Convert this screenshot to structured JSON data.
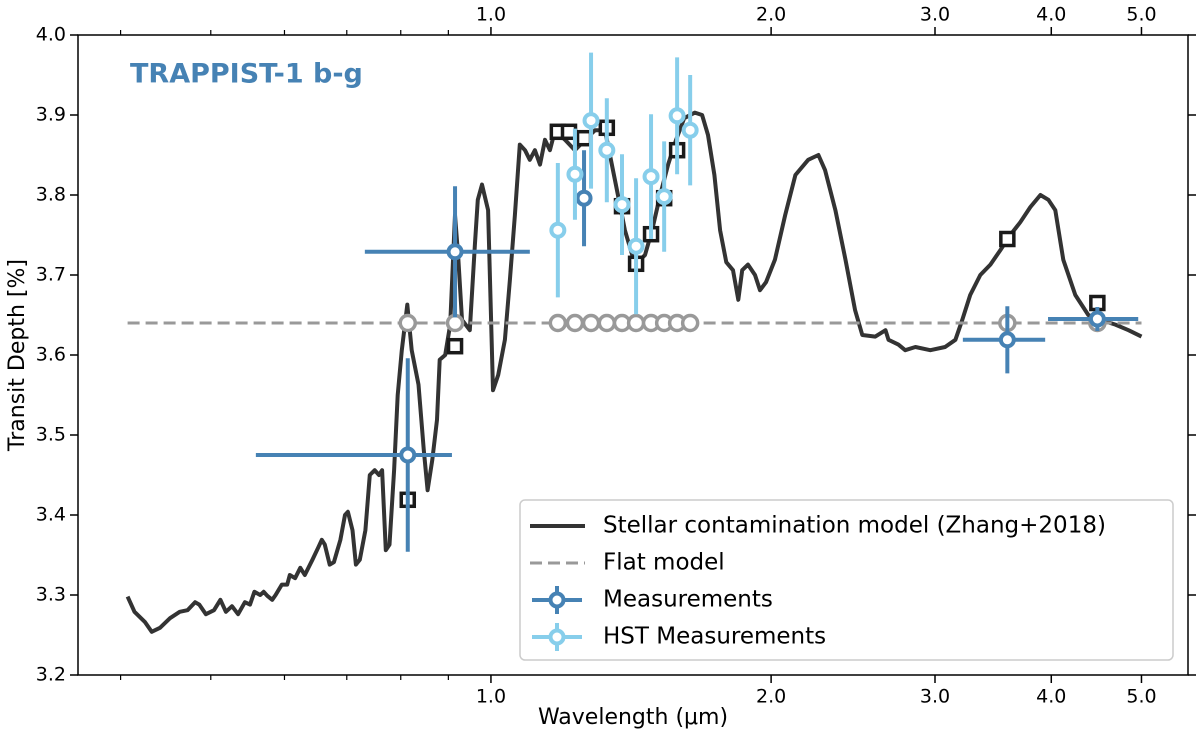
{
  "chart_data": {
    "type": "line",
    "annotation": "TRAPPIST-1 b-g",
    "annotation_color": "#4682b4",
    "xlabel": "Wavelength (μm)",
    "ylabel": "Transit Depth [%]",
    "xscale": "log",
    "xlim": [
      0.36,
      5.61
    ],
    "ylim": [
      3.2,
      4.0
    ],
    "xticks": [
      {
        "value": 1,
        "label": "1.0"
      },
      {
        "value": 2,
        "label": "2.0"
      },
      {
        "value": 3,
        "label": "3.0"
      },
      {
        "value": 4,
        "label": "4.0"
      },
      {
        "value": 5,
        "label": "5.0"
      }
    ],
    "xminor_ticks": [
      0.4,
      0.5,
      0.6,
      0.7,
      0.8,
      0.9
    ],
    "yticks": [
      3.2,
      3.3,
      3.4,
      3.5,
      3.6,
      3.7,
      3.8,
      3.9,
      {
        "value": 4,
        "label": "4.0"
      }
    ],
    "legend": "lower right",
    "series": [
      {
        "name": "Stellar contamination model (Zhang+2018)",
        "color": "#333333",
        "style": "solid",
        "x": [
          0.407,
          0.414,
          0.425,
          0.432,
          0.441,
          0.452,
          0.463,
          0.472,
          0.481,
          0.486,
          0.494,
          0.504,
          0.512,
          0.519,
          0.527,
          0.535,
          0.544,
          0.551,
          0.557,
          0.565,
          0.57,
          0.575,
          0.582,
          0.587,
          0.596,
          0.604,
          0.608,
          0.616,
          0.624,
          0.631,
          0.643,
          0.652,
          0.658,
          0.663,
          0.671,
          0.678,
          0.689,
          0.697,
          0.702,
          0.71,
          0.716,
          0.723,
          0.733,
          0.741,
          0.75,
          0.758,
          0.764,
          0.771,
          0.778,
          0.787,
          0.794,
          0.802,
          0.813,
          0.822,
          0.836,
          0.847,
          0.855,
          0.865,
          0.875,
          0.881,
          0.893,
          0.904,
          0.915,
          0.922,
          0.931,
          0.949,
          0.961,
          0.968,
          0.978,
          0.993,
          1.005,
          1.018,
          1.035,
          1.048,
          1.061,
          1.074,
          1.088,
          1.101,
          1.115,
          1.129,
          1.143,
          1.157,
          1.172,
          1.201,
          1.231,
          1.262,
          1.294,
          1.326,
          1.359,
          1.393,
          1.428,
          1.464,
          1.49,
          1.52,
          1.55,
          1.581,
          1.613,
          1.656,
          1.686,
          1.711,
          1.738,
          1.763,
          1.79,
          1.82,
          1.844,
          1.862,
          1.889,
          1.922,
          1.946,
          1.975,
          2.019,
          2.071,
          2.124,
          2.192,
          2.248,
          2.286,
          2.345,
          2.404,
          2.462,
          2.506,
          2.588,
          2.654,
          2.674,
          2.74,
          2.787,
          2.858,
          2.965,
          3.076,
          3.155,
          3.21,
          3.273,
          3.356,
          3.441,
          3.526,
          3.614,
          3.705,
          3.799,
          3.894,
          3.972,
          4.04,
          4.121,
          4.245,
          4.384,
          4.517,
          4.688,
          4.842,
          5.0
        ],
        "values": [
          3.298,
          3.279,
          3.266,
          3.254,
          3.259,
          3.271,
          3.279,
          3.281,
          3.291,
          3.288,
          3.276,
          3.281,
          3.294,
          3.279,
          3.286,
          3.276,
          3.291,
          3.288,
          3.304,
          3.3,
          3.304,
          3.299,
          3.294,
          3.3,
          3.313,
          3.313,
          3.325,
          3.321,
          3.334,
          3.325,
          3.344,
          3.359,
          3.369,
          3.363,
          3.338,
          3.341,
          3.369,
          3.4,
          3.404,
          3.381,
          3.338,
          3.344,
          3.381,
          3.45,
          3.456,
          3.45,
          3.456,
          3.356,
          3.363,
          3.456,
          3.55,
          3.606,
          3.663,
          3.606,
          3.563,
          3.481,
          3.431,
          3.469,
          3.519,
          3.594,
          3.6,
          3.638,
          3.775,
          3.725,
          3.644,
          3.631,
          3.738,
          3.794,
          3.813,
          3.781,
          3.556,
          3.575,
          3.619,
          3.694,
          3.775,
          3.863,
          3.856,
          3.844,
          3.856,
          3.838,
          3.869,
          3.856,
          3.881,
          3.869,
          3.856,
          3.869,
          3.881,
          3.881,
          3.819,
          3.756,
          3.713,
          3.725,
          3.756,
          3.8,
          3.838,
          3.869,
          3.896,
          3.903,
          3.9,
          3.875,
          3.825,
          3.756,
          3.716,
          3.706,
          3.669,
          3.706,
          3.713,
          3.7,
          3.681,
          3.691,
          3.719,
          3.775,
          3.825,
          3.844,
          3.85,
          3.831,
          3.781,
          3.719,
          3.656,
          3.625,
          3.623,
          3.631,
          3.619,
          3.613,
          3.606,
          3.61,
          3.606,
          3.61,
          3.619,
          3.644,
          3.675,
          3.7,
          3.713,
          3.731,
          3.75,
          3.766,
          3.785,
          3.8,
          3.794,
          3.781,
          3.719,
          3.675,
          3.65,
          3.644,
          3.638,
          3.631,
          3.623
        ]
      },
      {
        "name": "Flat model",
        "color": "#999999",
        "style": "dashed",
        "x": [
          0.407,
          5.0
        ],
        "values": [
          3.64,
          3.64
        ]
      },
      {
        "name": "Measurements",
        "color": "#4682b4",
        "style": "errorbar",
        "x": [
          0.814,
          0.915,
          1.259,
          3.588,
          4.483
        ],
        "values": [
          3.475,
          3.729,
          3.796,
          3.619,
          3.645
        ],
        "yerr": [
          0.121,
          0.082,
          0.06,
          0.042,
          0.015
        ],
        "xerr": [
          [
            0.255,
            0.094
          ],
          [
            0.183,
            0.186
          ],
          [
            0,
            0
          ],
          [
            0.374,
            0.352
          ],
          [
            0.515,
            0.477
          ]
        ]
      },
      {
        "name": "HST Measurements",
        "color": "#87ceeb",
        "style": "errorbar",
        "x": [
          1.18,
          1.231,
          1.281,
          1.332,
          1.383,
          1.432,
          1.486,
          1.535,
          1.585,
          1.637
        ],
        "values": [
          3.756,
          3.826,
          3.893,
          3.856,
          3.788,
          3.736,
          3.823,
          3.798,
          3.899,
          3.881
        ],
        "yerr": [
          0.084,
          0.057,
          0.085,
          0.065,
          0.063,
          0.085,
          0.078,
          0.069,
          0.073,
          0.069
        ]
      }
    ],
    "model_binned": {
      "color": "#1a1a1a",
      "x": [
        0.814,
        0.915,
        1.18,
        1.213,
        1.259,
        1.332,
        1.383,
        1.432,
        1.486,
        1.535,
        1.585,
        3.588,
        4.483
      ],
      "values": [
        3.419,
        3.611,
        3.879,
        3.879,
        3.871,
        3.884,
        3.786,
        3.714,
        3.751,
        3.796,
        3.856,
        3.745,
        3.665
      ]
    },
    "flat_binned": {
      "color": "#999999",
      "x": [
        0.814,
        0.915,
        1.18,
        1.231,
        1.281,
        1.332,
        1.383,
        1.432,
        1.486,
        1.535,
        1.585,
        1.637,
        3.588,
        4.483
      ],
      "values": [
        3.64,
        3.64,
        3.64,
        3.64,
        3.64,
        3.64,
        3.64,
        3.64,
        3.64,
        3.64,
        3.64,
        3.64,
        3.64,
        3.64
      ]
    }
  }
}
